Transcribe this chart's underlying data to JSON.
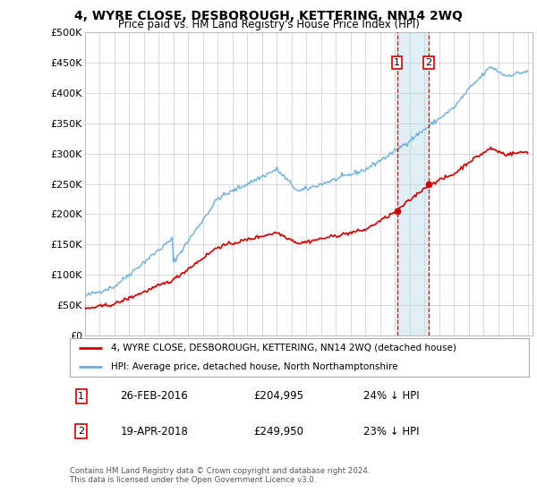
{
  "title": "4, WYRE CLOSE, DESBOROUGH, KETTERING, NN14 2WQ",
  "subtitle": "Price paid vs. HM Land Registry's House Price Index (HPI)",
  "ylabel_ticks": [
    "£0",
    "£50K",
    "£100K",
    "£150K",
    "£200K",
    "£250K",
    "£300K",
    "£350K",
    "£400K",
    "£450K",
    "£500K"
  ],
  "ytick_values": [
    0,
    50000,
    100000,
    150000,
    200000,
    250000,
    300000,
    350000,
    400000,
    450000,
    500000
  ],
  "ylim": [
    0,
    500000
  ],
  "hpi_color": "#6baed6",
  "price_color": "#cc0000",
  "sale1_year": 2016.15,
  "sale1_price": 204995,
  "sale2_year": 2018.3,
  "sale2_price": 249950,
  "legend_line1": "4, WYRE CLOSE, DESBOROUGH, KETTERING, NN14 2WQ (detached house)",
  "legend_line2": "HPI: Average price, detached house, North Northamptonshire",
  "row1_date": "26-FEB-2016",
  "row1_price": "£204,995",
  "row1_hpi": "24% ↓ HPI",
  "row2_date": "19-APR-2018",
  "row2_price": "£249,950",
  "row2_hpi": "23% ↓ HPI",
  "footer": "Contains HM Land Registry data © Crown copyright and database right 2024.\nThis data is licensed under the Open Government Licence v3.0.",
  "background_color": "#ffffff",
  "grid_color": "#cccccc"
}
